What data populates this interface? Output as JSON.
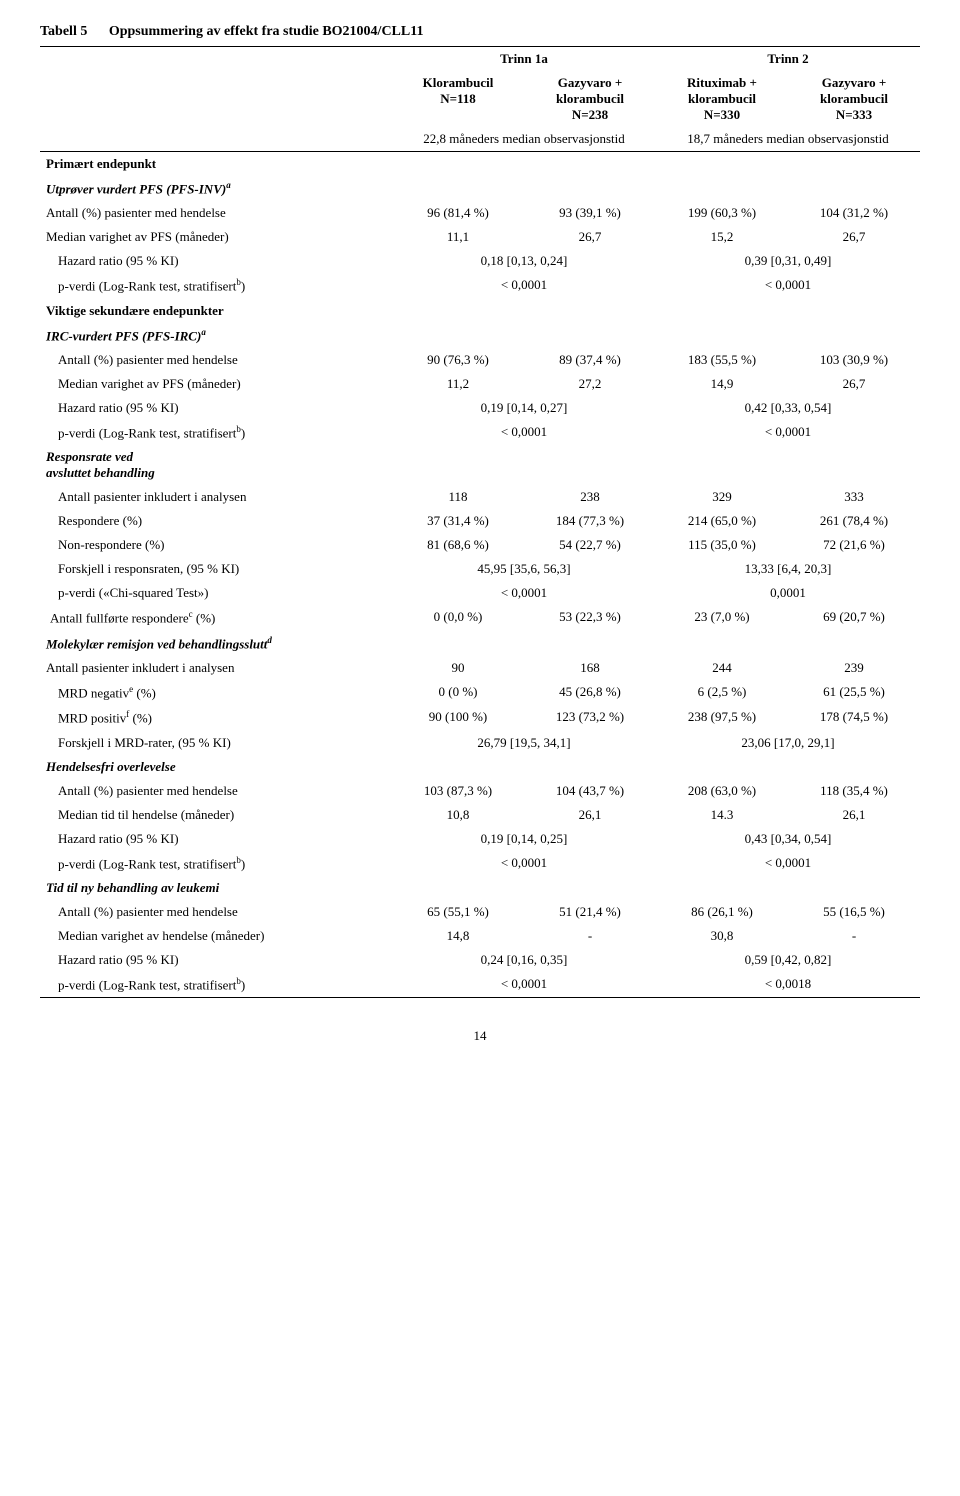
{
  "doc": {
    "title_label": "Tabell 5",
    "title_text": "Oppsummering av effekt fra studie BO21004/CLL11",
    "page_number": "14"
  },
  "header": {
    "trinn1": "Trinn 1a",
    "trinn2": "Trinn 2",
    "col1_a": "Klorambucil",
    "col1_b": "N=118",
    "col2_a": "Gazyvaro + klorambucil",
    "col2_b": "N=238",
    "col3_a": "Rituximab + klorambucil",
    "col3_b": "N=330",
    "col4_a": "Gazyvaro + klorambucil",
    "col4_b": "N=333",
    "obs1": "22,8 måneders median observasjonstid",
    "obs2": "18,7 måneders median observasjonstid"
  },
  "labels": {
    "primary": "Primært endepunkt",
    "pfs_inv": "Utprøver vurdert PFS (PFS-INV)",
    "pct_events": "Antall (%) pasienter med hendelse",
    "median_pfs": "Median varighet av PFS (måneder)",
    "hr": "Hazard ratio (95 % KI)",
    "p_logrank": "p-verdi (Log-Rank test, stratifisert",
    "secondary": "Viktige sekundære endepunkter",
    "pfs_irc": "IRC-vurdert PFS (PFS-IRC)",
    "response_hdr1": "Responsrate ved",
    "response_hdr2": "avsluttet behandling",
    "n_included": "Antall pasienter inkludert i analysen",
    "responders": "Respondere (%)",
    "nonresponders": "Non-respondere (%)",
    "resp_diff": "Forskjell i responsraten, (95 % KI)",
    "p_chi": "p-verdi («Chi-squared Test»)",
    "complete_resp": "Antall fullførte respondere",
    "molrem": "Molekylær remisjon ved behandlingsslutt",
    "mrd_neg": "MRD negativ",
    "mrd_pos": "MRD positiv",
    "mrd_diff": "Forskjell i MRD-rater, (95 % KI)",
    "efs": "Hendelsesfri overlevelse",
    "median_time_event": "Median tid til hendelse (måneder)",
    "ttnt": "Tid til ny behandling av leukemi",
    "median_dur_event": "Median varighet av hendelse (måneder)",
    "pct_suffix": " (%)"
  },
  "pfs_inv": {
    "events": [
      "96 (81,4 %)",
      "93 (39,1 %)",
      "199 (60,3 %)",
      "104 (31,2 %)"
    ],
    "median": [
      "11,1",
      "26,7",
      "15,2",
      "26,7"
    ],
    "hr": [
      "0,18 [0,13, 0,24]",
      "0,39 [0,31, 0,49]"
    ],
    "p": [
      "< 0,0001",
      "< 0,0001"
    ]
  },
  "pfs_irc": {
    "events": [
      "90 (76,3 %)",
      "89 (37,4 %)",
      "183 (55,5 %)",
      "103 (30,9 %)"
    ],
    "median": [
      "11,2",
      "27,2",
      "14,9",
      "26,7"
    ],
    "hr": [
      "0,19 [0,14, 0,27]",
      "0,42 [0,33, 0,54]"
    ],
    "p": [
      "< 0,0001",
      "< 0,0001"
    ]
  },
  "response": {
    "n": [
      "118",
      "238",
      "329",
      "333"
    ],
    "resp": [
      "37 (31,4 %)",
      "184 (77,3 %)",
      "214 (65,0 %)",
      "261 (78,4 %)"
    ],
    "nonresp": [
      "81 (68,6 %)",
      "54 (22,7 %)",
      "115 (35,0 %)",
      "72 (21,6 %)"
    ],
    "diff": [
      "45,95 [35,6, 56,3]",
      "13,33 [6,4, 20,3]"
    ],
    "p": [
      "< 0,0001",
      "0,0001"
    ],
    "complete": [
      "0 (0,0 %)",
      "53 (22,3 %)",
      "23 (7,0 %)",
      "69 (20,7 %)"
    ]
  },
  "molrem": {
    "n": [
      "90",
      "168",
      "244",
      "239"
    ],
    "neg": [
      "0 (0 %)",
      "45 (26,8 %)",
      "6 (2,5 %)",
      "61 (25,5 %)"
    ],
    "pos": [
      "90 (100 %)",
      "123 (73,2 %)",
      "238 (97,5 %)",
      "178 (74,5 %)"
    ],
    "diff": [
      "26,79 [19,5, 34,1]",
      "23,06 [17,0, 29,1]"
    ]
  },
  "efs": {
    "events": [
      "103 (87,3 %)",
      "104 (43,7 %)",
      "208 (63,0 %)",
      "118 (35,4 %)"
    ],
    "median": [
      "10,8",
      "26,1",
      "14.3",
      "26,1"
    ],
    "hr": [
      "0,19 [0,14, 0,25]",
      "0,43 [0,34, 0,54]"
    ],
    "p": [
      "< 0,0001",
      "< 0,0001"
    ]
  },
  "ttnt": {
    "events": [
      "65 (55,1 %)",
      "51 (21,4 %)",
      "86 (26,1 %)",
      "55 (16,5 %)"
    ],
    "median": [
      "14,8",
      "-",
      "30,8",
      "-"
    ],
    "hr": [
      "0,24 [0,16, 0,35]",
      "0,59 [0,42, 0,82]"
    ],
    "p": [
      "< 0,0001",
      "< 0,0018"
    ]
  }
}
